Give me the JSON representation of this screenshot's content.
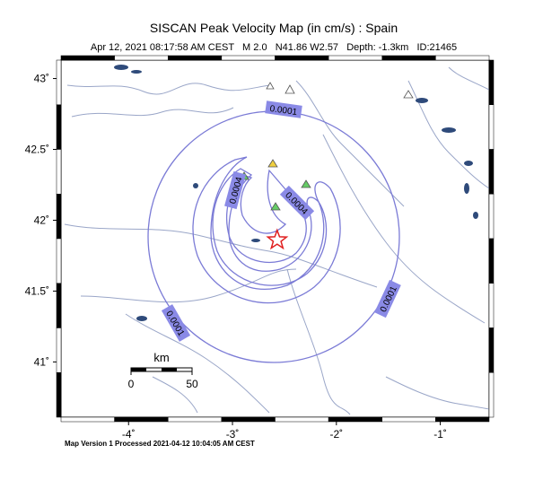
{
  "title": "SISCAN Peak Velocity Map (in cm/s) : Spain",
  "subtitle": "Apr 12, 2021 08:17:58 AM CEST   M 2.0   N41.86 W2.57   Depth: -1.3km   ID:21465",
  "footer": "Map Version 1 Processed 2021-04-12 10:04:05 AM CEST",
  "map": {
    "xlim": [
      -4.65,
      -0.53
    ],
    "ylim": [
      40.61,
      43.13
    ],
    "xticks": [
      {
        "value": -4,
        "label": "-4˚"
      },
      {
        "value": -3,
        "label": "-3˚"
      },
      {
        "value": -2,
        "label": "-2˚"
      },
      {
        "value": -1,
        "label": "-1˚"
      }
    ],
    "yticks": [
      {
        "value": 43,
        "label": "43˚"
      },
      {
        "value": 42.5,
        "label": "42.5˚"
      },
      {
        "value": 42,
        "label": "42˚"
      },
      {
        "value": 41.5,
        "label": "41.5˚"
      },
      {
        "value": 41,
        "label": "41˚"
      }
    ],
    "epicenter": {
      "lon": -2.57,
      "lat": 41.86
    },
    "contour_labels": [
      "0.0001",
      "0.0004",
      "0.0004",
      "0.0001",
      "0.0001"
    ]
  },
  "scale": {
    "title": "km",
    "labels": [
      "0",
      "50"
    ]
  }
}
